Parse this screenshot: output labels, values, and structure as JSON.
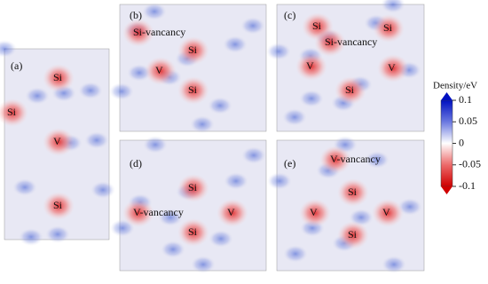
{
  "panels": [
    {
      "label": "(a)",
      "annotations": [
        "Si",
        "Si",
        "V",
        "Si"
      ]
    },
    {
      "label": "(b)",
      "annotations": [
        "Si-vancancy",
        "Si",
        "V",
        "Si"
      ]
    },
    {
      "label": "(c)",
      "annotations": [
        "Si",
        "Si",
        "Si-vancancy",
        "V",
        "V",
        "Si"
      ]
    },
    {
      "label": "(d)",
      "annotations": [
        "Si",
        "V-vancancy",
        "V",
        "Si"
      ]
    },
    {
      "label": "(e)",
      "annotations": [
        "V-vancancy",
        "Si",
        "V",
        "V",
        "Si"
      ]
    }
  ],
  "colorbar": {
    "title": "Density/eV",
    "range": [
      -0.1,
      0.1
    ],
    "ticks": [
      0.1,
      0.05,
      0,
      -0.05,
      -0.1
    ]
  }
}
